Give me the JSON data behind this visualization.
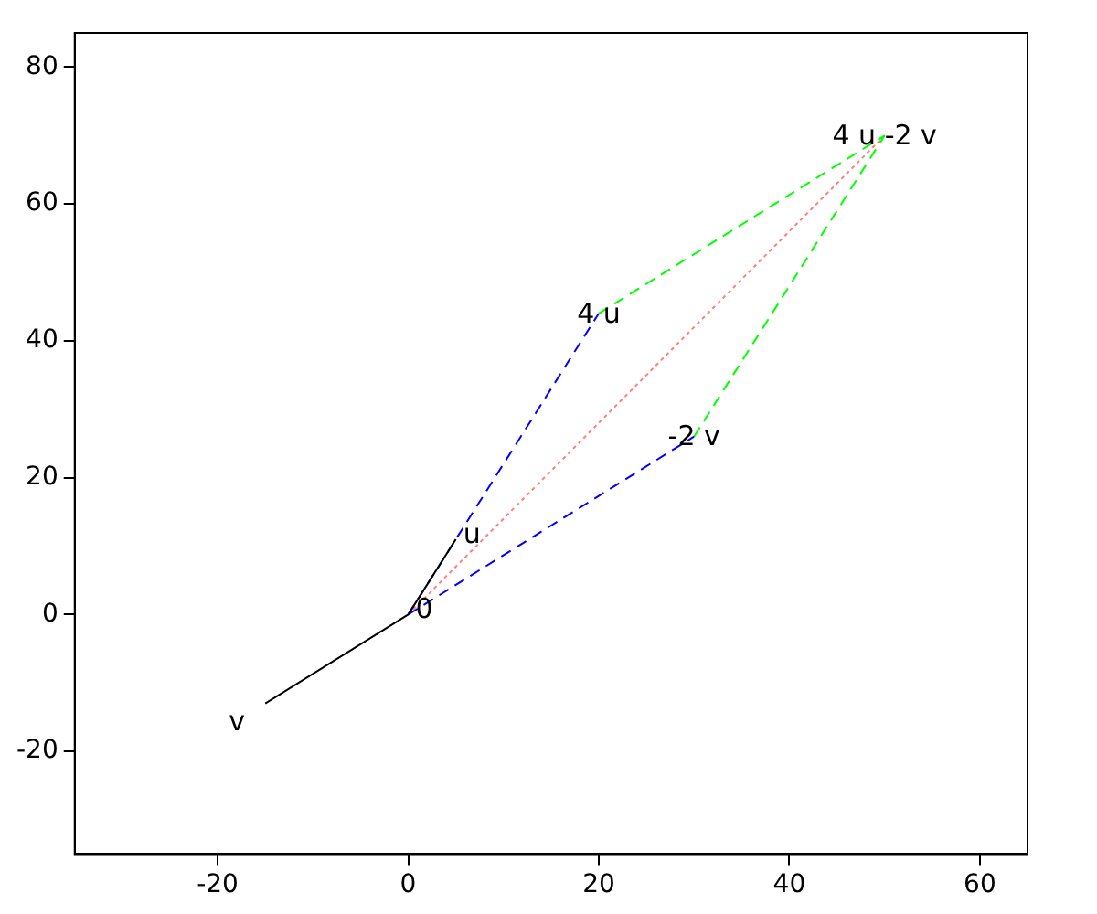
{
  "chart_data": {
    "type": "line",
    "xlim": [
      -35,
      65
    ],
    "ylim": [
      -35,
      85
    ],
    "xticks": [
      -20,
      0,
      20,
      40,
      60
    ],
    "yticks": [
      -20,
      0,
      20,
      40,
      60,
      80
    ],
    "grid": false,
    "legend": false,
    "marker": "none",
    "series": [
      {
        "color": "#000000",
        "line_style": "solid",
        "x": [
          0,
          5,
          null,
          0,
          -15
        ],
        "values": [
          0,
          11,
          null,
          0,
          -13
        ]
      },
      {
        "color": "#0000ff",
        "line_style": "dashed",
        "x": [
          0,
          20,
          null,
          0,
          30
        ],
        "values": [
          0,
          44,
          null,
          0,
          26
        ]
      },
      {
        "color": "#00ff00",
        "line_style": "dashed",
        "x": [
          20,
          50,
          null,
          30,
          50
        ],
        "values": [
          44,
          70,
          null,
          26,
          70
        ]
      },
      {
        "color": "#ff8080",
        "line_style": "dotted",
        "x": [
          0,
          50
        ],
        "values": [
          0,
          70
        ]
      }
    ],
    "annotations": [
      {
        "text": "0",
        "x": 0,
        "y": 0
      },
      {
        "text": "u",
        "x": 5,
        "y": 11
      },
      {
        "text": "v",
        "x": -15,
        "y": -13
      },
      {
        "text": "4 u",
        "x": 20,
        "y": 44
      },
      {
        "text": "-2 v",
        "x": 30,
        "y": 26
      },
      {
        "text": "4 u -2 v",
        "x": 50,
        "y": 70
      }
    ]
  }
}
